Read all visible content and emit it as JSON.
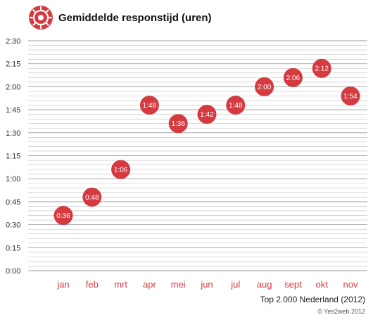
{
  "chart_data": {
    "type": "scatter",
    "title": "Gemiddelde responstijd (uren)",
    "categories": [
      "jan",
      "feb",
      "mrt",
      "apr",
      "mei",
      "jun",
      "jul",
      "aug",
      "sept",
      "okt",
      "nov"
    ],
    "values": [
      0.6,
      0.8,
      1.1,
      1.8,
      1.6,
      1.7,
      1.8,
      2.0,
      2.1,
      2.2,
      1.9
    ],
    "labels": [
      "0:36",
      "0:48",
      "1:06",
      "1:48",
      "1:36",
      "1:42",
      "1:48",
      "2:00",
      "2:06",
      "2:12",
      "1:54"
    ],
    "yticks": [
      "0:00",
      "0:15",
      "0:30",
      "0:45",
      "1:00",
      "1:15",
      "1:30",
      "1:45",
      "2:00",
      "2:15",
      "2:30"
    ],
    "ylim": [
      0,
      2.5
    ],
    "subtitle": "Top 2.000 Nederland (2012)",
    "credit": "© Yes2web 2012",
    "grid": true,
    "colors": {
      "marker": "#d43a3f",
      "tick_label_x": "#d43a3f",
      "grid": "#bfbfbf"
    },
    "icon": "dial-icon"
  }
}
